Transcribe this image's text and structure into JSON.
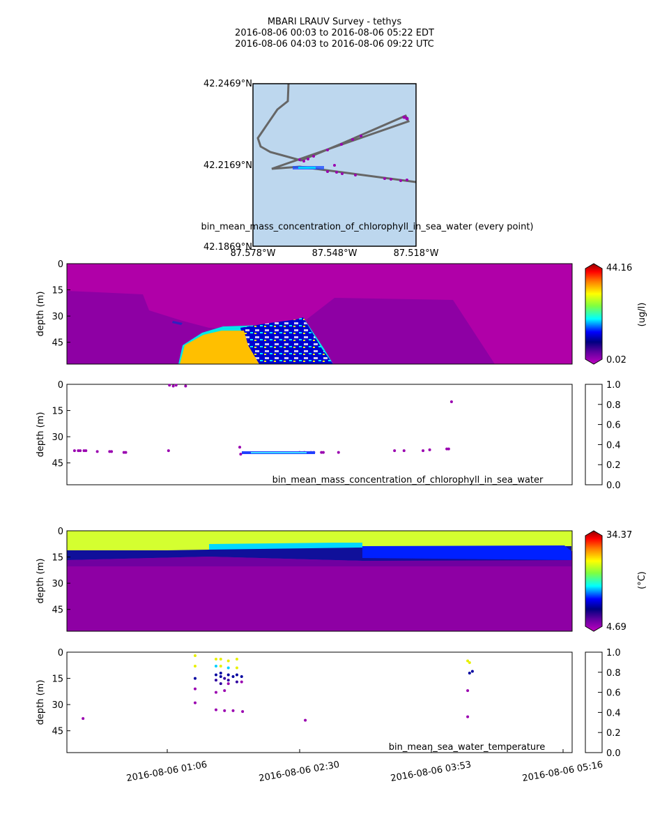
{
  "header": {
    "line1": "MBARI LRAUV Survey - tethys",
    "line2": "2016-08-06 00:03  to  2016-08-06 05:22 EDT",
    "line3": "2016-08-06 04:03  to  2016-08-06 09:22 UTC"
  },
  "colors": {
    "map_water": "#bdd7ee",
    "track": "#666666",
    "section_bg": "#b000a8",
    "plume": "#ffbf00"
  },
  "map": {
    "lat_labels": [
      "42.2469°N",
      "42.2169°N",
      "42.1869°N"
    ],
    "lon_labels": [
      "87.578°W",
      "87.548°W",
      "87.518°W"
    ],
    "caption": "bin_mean_mass_concentration_of_chlorophyll_in_sea_water (every point)"
  },
  "chart_data": [
    {
      "type": "heatmap",
      "name": "chlorophyll-section",
      "ylabel": "depth (m)",
      "y_ticks": [
        "0",
        "15",
        "30",
        "45"
      ],
      "ylim": [
        60,
        0
      ],
      "colorbar": {
        "max_label": "44.16",
        "min_label": "0.02",
        "unit": "(ug/l)"
      }
    },
    {
      "type": "scatter",
      "name": "chlorophyll-points",
      "ylabel": "depth (m)",
      "y_ticks": [
        "0",
        "15",
        "30",
        "45"
      ],
      "ylim": [
        60,
        0
      ],
      "label": "bin_mean_mass_concentration_of_chlorophyll_in_sea_water",
      "colorbar_ticks": [
        "1.0",
        "0.8",
        "0.6",
        "0.4",
        "0.2",
        "0.0"
      ],
      "x_hours": [
        0.08,
        0.12,
        0.14,
        0.18,
        0.2,
        0.32,
        0.45,
        0.47,
        0.6,
        0.62,
        1.07,
        1.08,
        1.12,
        1.15,
        1.25,
        1.82,
        1.83,
        2.45,
        2.5,
        2.57,
        2.6,
        2.68,
        2.7,
        2.86,
        3.45,
        3.55,
        3.75,
        3.82,
        4.0,
        4.02,
        4.05
      ],
      "depth": [
        38,
        38,
        38,
        38,
        38,
        38.5,
        38.5,
        38.5,
        39,
        39,
        38,
        0.5,
        1,
        0.5,
        1,
        36,
        40,
        39,
        39,
        39,
        39,
        39,
        39,
        39,
        38,
        38,
        38,
        37.5,
        37,
        37,
        10
      ]
    },
    {
      "type": "heatmap",
      "name": "temperature-section",
      "ylabel": "depth (m)",
      "y_ticks": [
        "0",
        "15",
        "30",
        "45"
      ],
      "ylim": [
        60,
        0
      ],
      "colorbar": {
        "max_label": "34.37",
        "min_label": "4.69",
        "unit": "(°C)"
      }
    },
    {
      "type": "scatter",
      "name": "temperature-points",
      "ylabel": "depth (m)",
      "y_ticks": [
        "0",
        "15",
        "30",
        "45"
      ],
      "ylim": [
        60,
        0
      ],
      "label": "bin_mean_sea_water_temperature",
      "colorbar_ticks": [
        "1.0",
        "0.8",
        "0.6",
        "0.4",
        "0.2",
        "0.0"
      ],
      "x_labels": [
        "2016-08-06 01:06",
        "2016-08-06 02:30",
        "2016-08-06 03:53",
        "2016-08-06 05:16"
      ],
      "points": [
        [
          0.17,
          38,
          "#9a00b0"
        ],
        [
          1.35,
          2,
          "#e8f000"
        ],
        [
          1.35,
          8,
          "#e8f000"
        ],
        [
          1.35,
          15,
          "#0000a0"
        ],
        [
          1.35,
          21,
          "#9a00b0"
        ],
        [
          1.35,
          29,
          "#9a00b0"
        ],
        [
          1.57,
          4,
          "#e8f000"
        ],
        [
          1.57,
          8,
          "#00d0ff"
        ],
        [
          1.57,
          13,
          "#0000a0"
        ],
        [
          1.57,
          16,
          "#3000a0"
        ],
        [
          1.57,
          23,
          "#9a00b0"
        ],
        [
          1.57,
          33,
          "#9a00b0"
        ],
        [
          1.62,
          4,
          "#e8f000"
        ],
        [
          1.62,
          8,
          "#e8f000"
        ],
        [
          1.62,
          12,
          "#0000a0"
        ],
        [
          1.62,
          14,
          "#0000a0"
        ],
        [
          1.62,
          18,
          "#3000a0"
        ],
        [
          1.66,
          15,
          "#3000a0"
        ],
        [
          1.66,
          22,
          "#9a00b0"
        ],
        [
          1.66,
          33.5,
          "#9a00b0"
        ],
        [
          1.7,
          5,
          "#e8f000"
        ],
        [
          1.7,
          9,
          "#00d0ff"
        ],
        [
          1.7,
          13,
          "#0000a0"
        ],
        [
          1.7,
          16,
          "#3000a0"
        ],
        [
          1.7,
          18,
          "#9a00b0"
        ],
        [
          1.75,
          14,
          "#0000a0"
        ],
        [
          1.75,
          33.5,
          "#9a00b0"
        ],
        [
          1.79,
          4,
          "#e8f000"
        ],
        [
          1.79,
          9,
          "#e8f000"
        ],
        [
          1.79,
          13,
          "#0000a0"
        ],
        [
          1.79,
          17,
          "#3000a0"
        ],
        [
          1.84,
          14,
          "#0000a0"
        ],
        [
          1.84,
          17,
          "#9a00b0"
        ],
        [
          1.85,
          34,
          "#9a00b0"
        ],
        [
          2.51,
          39,
          "#9a00b0"
        ],
        [
          4.22,
          5,
          "#e8f000"
        ],
        [
          4.24,
          6,
          "#e8f000"
        ],
        [
          4.24,
          12,
          "#0000a0"
        ],
        [
          4.27,
          11,
          "#0000a0"
        ],
        [
          4.22,
          22,
          "#9a00b0"
        ],
        [
          4.22,
          37,
          "#9a00b0"
        ]
      ]
    }
  ]
}
